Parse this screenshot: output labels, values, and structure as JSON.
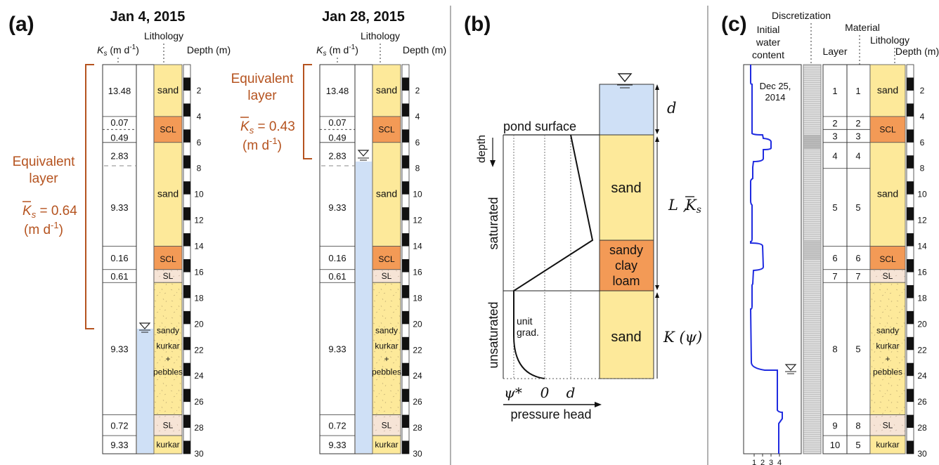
{
  "panel_a": {
    "label": "(a)",
    "col1": {
      "date": "Jan 4, 2015",
      "ks_header": "K",
      "ks_sub": "s",
      "ks_unit": " (m d",
      "ks_unit_exp": "-1",
      "ks_unit_close": ")",
      "lith_header": "Lithology",
      "depth_header": "Depth (m)",
      "ks_values": [
        "13.48",
        "0.07",
        "0.49",
        "2.83",
        "9.33",
        "0.16",
        "0.61",
        "9.33",
        "0.72",
        "9.33"
      ],
      "lith_labels": [
        "sand",
        "SCL",
        "sand",
        "SCL",
        "SL",
        "sandy",
        "kurkar",
        "+",
        "pebbles",
        "SL",
        "kurkar"
      ],
      "equiv_line1": "Equivalent",
      "equiv_line2": "layer",
      "equiv_ks": "K",
      "equiv_ks_sub": "s",
      "equiv_value": " = 0.64",
      "equiv_unit": "(m d",
      "equiv_unit_exp": "-1",
      "equiv_unit_close": ")"
    },
    "col2": {
      "date": "Jan 28, 2015",
      "ks_header": "K",
      "ks_sub": "s",
      "ks_unit": " (m d",
      "ks_unit_exp": "-1",
      "ks_unit_close": ")",
      "lith_header": "Lithology",
      "depth_header": "Depth (m)",
      "ks_values": [
        "13.48",
        "0.07",
        "0.49",
        "2.83",
        "9.33",
        "0.16",
        "0.61",
        "9.33",
        "0.72",
        "9.33"
      ],
      "lith_labels": [
        "sand",
        "SCL",
        "sand",
        "SCL",
        "SL",
        "sandy",
        "kurkar",
        "+",
        "pebbles",
        "SL",
        "kurkar"
      ],
      "equiv_line1": "Equivalent",
      "equiv_line2": "layer",
      "equiv_ks": "K",
      "equiv_ks_sub": "s",
      "equiv_value": " = 0.43",
      "equiv_unit": "(m d",
      "equiv_unit_exp": "-1",
      "equiv_unit_close": ")"
    },
    "depth_ticks": [
      "2",
      "4",
      "6",
      "8",
      "10",
      "12",
      "14",
      "16",
      "18",
      "20",
      "22",
      "24",
      "26",
      "28",
      "30"
    ]
  },
  "panel_b": {
    "label": "(b)",
    "pond_surface": "pond surface",
    "depth": "depth",
    "saturated": "saturated",
    "unsaturated": "unsaturated",
    "unit_grad_1": "unit",
    "unit_grad_2": "grad.",
    "psi_star": "ψ*",
    "zero": "0",
    "d_axis": "d",
    "pressure_head": "pressure head",
    "sand_top": "sand",
    "sandy": "sandy",
    "clay": "clay",
    "loam": "loam",
    "sand_bottom": "sand",
    "d_label": "d",
    "L_label": "L ,",
    "K_bar": "K",
    "K_bar_sub": "s",
    "K_psi": "K (ψ)"
  },
  "panel_c": {
    "label": "(c)",
    "discretization": "Discretization",
    "initial_water_1": "Initial",
    "initial_water_2": "water",
    "initial_water_3": "content",
    "material": "Material",
    "layer": "Layer",
    "lithology": "Lithology",
    "depth_header": "Depth (m)",
    "date_1": "Dec 25,",
    "date_2": "2014",
    "layers": [
      "1",
      "2",
      "3",
      "4",
      "5",
      "6",
      "7",
      "8",
      "9",
      "10"
    ],
    "materials": [
      "1",
      "2",
      "3",
      "4",
      "5",
      "6",
      "7",
      "5",
      "8",
      "5"
    ],
    "lith_labels": [
      "sand",
      "SCL",
      "sand",
      "SCL",
      "SL",
      "sandy",
      "kurkar",
      "+",
      "pebbles",
      "SL",
      "kurkar"
    ],
    "x_ticks": [
      "1",
      "2",
      "3",
      "4"
    ],
    "depth_ticks": [
      "2",
      "4",
      "6",
      "8",
      "10",
      "12",
      "14",
      "16",
      "18",
      "20",
      "22",
      "24",
      "26",
      "28",
      "30"
    ]
  },
  "colors": {
    "sand": "#fde99a",
    "scl": "#f39a56",
    "sl": "#f6e4d6",
    "water": "#cfe0f6",
    "accent": "#b5531f",
    "curve": "#1f2be0"
  }
}
